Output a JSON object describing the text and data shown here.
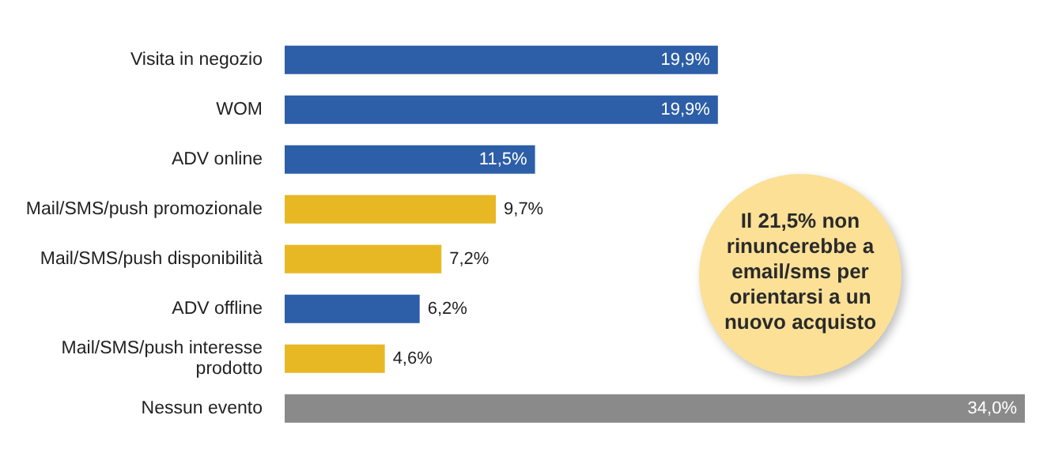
{
  "chart_data": {
    "type": "bar",
    "orientation": "horizontal",
    "categories": [
      "Visita in negozio",
      "WOM",
      "ADV online",
      "Mail/SMS/push promozionale",
      "Mail/SMS/push disponibilità",
      "ADV offline",
      "Mail/SMS/push interesse prodotto",
      "Nessun evento"
    ],
    "values": [
      19.9,
      19.9,
      11.5,
      9.7,
      7.2,
      6.2,
      4.6,
      34.0
    ],
    "colors": [
      "#2d5ea8",
      "#2d5ea8",
      "#2d5ea8",
      "#e8b824",
      "#e8b824",
      "#2d5ea8",
      "#e8b824",
      "#8a8a8a"
    ],
    "value_labels": [
      "19,9%",
      "19,9%",
      "11,5%",
      "9,7%",
      "7,2%",
      "6,2%",
      "4,6%",
      "34,0%"
    ],
    "annotations": [
      "Il 21,5% non rinuncerebbe a email/sms per orientarsi a un nuovo acquisto"
    ]
  }
}
